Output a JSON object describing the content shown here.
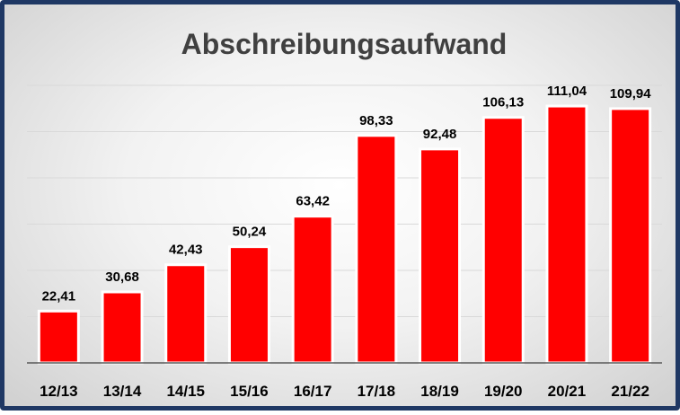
{
  "colors": {
    "bar": "#ff0000",
    "bar_outline": "#ffffff",
    "border": "#1f3864",
    "gridline": "#d9d9d9",
    "axis": "#595959"
  },
  "chart_data": {
    "type": "bar",
    "title": "Abschreibungsaufwand",
    "xlabel": "",
    "ylabel": "",
    "categories": [
      "12/13",
      "13/14",
      "14/15",
      "15/16",
      "16/17",
      "17/18",
      "18/19",
      "19/20",
      "20/21",
      "21/22"
    ],
    "series": [
      {
        "values": [
          22.41,
          30.68,
          42.43,
          50.24,
          63.42,
          98.33,
          92.48,
          106.13,
          111.04,
          109.94
        ]
      }
    ],
    "value_labels": [
      "22,41",
      "30,68",
      "42,43",
      "50,24",
      "63,42",
      "98,33",
      "92,48",
      "106,13",
      "111,04",
      "109,94"
    ],
    "ylim": [
      0,
      120
    ],
    "grid": true,
    "legend": "none"
  }
}
